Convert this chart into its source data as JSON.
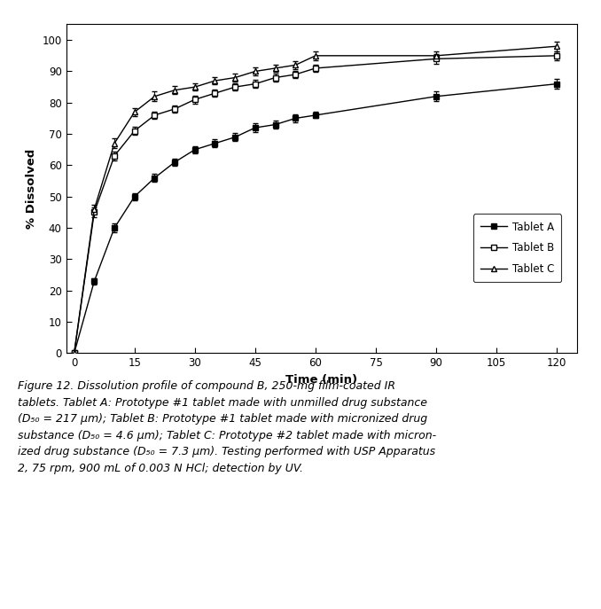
{
  "time": [
    0,
    5,
    10,
    15,
    20,
    25,
    30,
    35,
    40,
    45,
    50,
    55,
    60,
    90,
    120
  ],
  "tablet_A": [
    0,
    23,
    40,
    50,
    56,
    61,
    65,
    67,
    69,
    72,
    73,
    75,
    76,
    82,
    86
  ],
  "tablet_A_err": [
    0,
    1.0,
    1.5,
    1.2,
    1.2,
    1.2,
    1.2,
    1.2,
    1.2,
    1.5,
    1.2,
    1.2,
    1.0,
    1.5,
    1.5
  ],
  "tablet_B": [
    0,
    45,
    63,
    71,
    76,
    78,
    81,
    83,
    85,
    86,
    88,
    89,
    91,
    94,
    95
  ],
  "tablet_B_err": [
    0,
    1.5,
    1.5,
    1.2,
    1.2,
    1.2,
    1.2,
    1.2,
    1.2,
    1.2,
    1.2,
    1.2,
    1.2,
    1.5,
    1.5
  ],
  "tablet_C": [
    0,
    46,
    67,
    77,
    82,
    84,
    85,
    87,
    88,
    90,
    91,
    92,
    95,
    95,
    98
  ],
  "tablet_C_err": [
    0,
    1.5,
    1.5,
    1.2,
    1.5,
    1.2,
    1.2,
    1.2,
    1.2,
    1.2,
    1.2,
    1.2,
    1.5,
    1.5,
    1.5
  ],
  "xlabel": "Time (min)",
  "ylabel": "% Dissolved",
  "xlim": [
    -2,
    125
  ],
  "ylim": [
    0,
    105
  ],
  "xticks": [
    0,
    15,
    30,
    45,
    60,
    75,
    90,
    105,
    120
  ],
  "yticks": [
    0,
    10,
    20,
    30,
    40,
    50,
    60,
    70,
    80,
    90,
    100
  ],
  "background_color": "#ffffff",
  "bar_color": "#7b2035",
  "caption": "Figure 12. Dissolution profile of compound B, 250-mg film-coated IR\ntablets. Tablet A: Prototype #1 tablet made with unmilled drug substance\n(D50 = 217 μm); Tablet B: Prototype #1 tablet made with micronized drug\nsubstance (D50 = 4.6 μm); Tablet C: Prototype #2 tablet made with micron-\nized drug substance (D50 = 7.3 μm). Testing performed with USP Apparatus\n2, 75 rpm, 900 mL of 0.003 N HCl; detection by UV."
}
